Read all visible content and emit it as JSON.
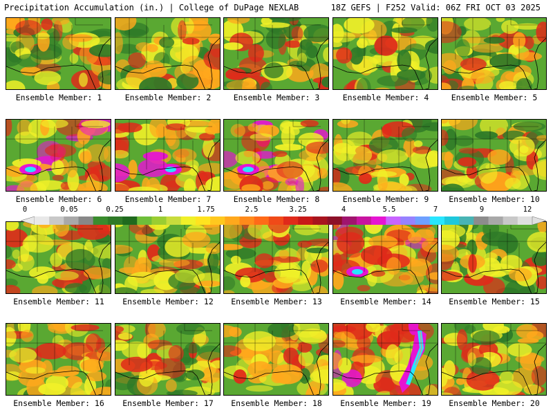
{
  "header": {
    "left_title": "Precipitation Accumulation (in.) | College of DuPage NEXLAB",
    "right_title": "18Z GEFS | F252 Valid: 06Z FRI OCT 03 2025"
  },
  "colorbar": {
    "tick_labels": [
      "0",
      "0.05",
      "0.25",
      "1",
      "1.75",
      "2.5",
      "3.25",
      "4",
      "5.5",
      "7",
      "9",
      "12"
    ],
    "colors": [
      "#e8e8e8",
      "#c8c8c8",
      "#a8a8a8",
      "#888888",
      "#3a8c2e",
      "#2f7a28",
      "#1f6a1e",
      "#6ebe3a",
      "#9acd32",
      "#c8dc3c",
      "#f0f028",
      "#ffe31f",
      "#ffc81e",
      "#ffa81c",
      "#ff8a1a",
      "#ff6a18",
      "#f04a18",
      "#e02a1a",
      "#c81818",
      "#a8141e",
      "#8c1028",
      "#a0146e",
      "#c814a0",
      "#e614d2",
      "#c864ff",
      "#9682ff",
      "#6ea0ff",
      "#28e6ff",
      "#1ec8dc",
      "#48b4b4",
      "#8c8c8c",
      "#a8a8a8",
      "#c8c8c8",
      "#e0e0e0"
    ]
  },
  "colors": {
    "land_green": "#5aa832",
    "dark_green": "#2f7a28",
    "yellow": "#f0f028",
    "orange": "#ffa81c",
    "red": "#e02a1a",
    "magenta": "#e614d2",
    "cyan": "#28e6ff",
    "gray": "#a8a8a8"
  },
  "panels": [
    {
      "label": "Ensemble Member: 1",
      "theme": "mixed"
    },
    {
      "label": "Ensemble Member: 2",
      "theme": "mixed"
    },
    {
      "label": "Ensemble Member: 3",
      "theme": "green"
    },
    {
      "label": "Ensemble Member: 4",
      "theme": "green"
    },
    {
      "label": "Ensemble Member: 5",
      "theme": "mixed"
    },
    {
      "label": "Ensemble Member: 6",
      "theme": "wet-west"
    },
    {
      "label": "Ensemble Member: 7",
      "theme": "wet-gulf"
    },
    {
      "label": "Ensemble Member: 8",
      "theme": "wet-west"
    },
    {
      "label": "Ensemble Member: 9",
      "theme": "mixed"
    },
    {
      "label": "Ensemble Member: 10",
      "theme": "mixed"
    },
    {
      "label": "Ensemble Member: 11",
      "theme": "green"
    },
    {
      "label": "Ensemble Member: 12",
      "theme": "mixed"
    },
    {
      "label": "Ensemble Member: 13",
      "theme": "warm"
    },
    {
      "label": "Ensemble Member: 14",
      "theme": "wet-west"
    },
    {
      "label": "Ensemble Member: 15",
      "theme": "green"
    },
    {
      "label": "Ensemble Member: 16",
      "theme": "warm"
    },
    {
      "label": "Ensemble Member: 17",
      "theme": "mixed"
    },
    {
      "label": "Ensemble Member: 18",
      "theme": "warm"
    },
    {
      "label": "Ensemble Member: 19",
      "theme": "wet-east"
    },
    {
      "label": "Ensemble Member: 20",
      "theme": "warm"
    }
  ]
}
